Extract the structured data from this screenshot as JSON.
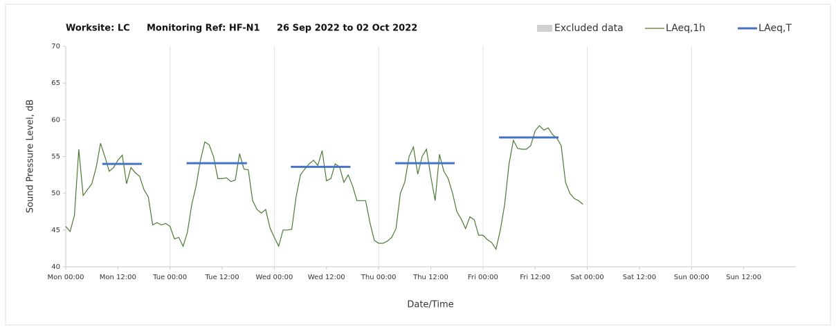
{
  "chart_data": {
    "type": "line",
    "title": [
      "Worksite: LC",
      "Monitoring Ref: HF-N1",
      "26 Sep 2022 to 02 Oct 2022"
    ],
    "x_label": "Date/Time",
    "y_label": "Sound Pressure Level, dB",
    "excluded": {
      "name": "Excluded data",
      "color": "#d0d0d0"
    },
    "xlim": [
      0,
      168
    ],
    "ylim": [
      40,
      70
    ],
    "yticks": [
      40,
      45,
      50,
      55,
      60,
      65,
      70
    ],
    "xticks": [
      {
        "value": 0,
        "label": "Mon 00:00"
      },
      {
        "value": 12,
        "label": "Mon 12:00"
      },
      {
        "value": 24,
        "label": "Tue 00:00"
      },
      {
        "value": 36,
        "label": "Tue 12:00"
      },
      {
        "value": 48,
        "label": "Wed 00:00"
      },
      {
        "value": 60,
        "label": "Wed 12:00"
      },
      {
        "value": 72,
        "label": "Thu 00:00"
      },
      {
        "value": 84,
        "label": "Thu 12:00"
      },
      {
        "value": 96,
        "label": "Fri 00:00"
      },
      {
        "value": 108,
        "label": "Fri 12:00"
      },
      {
        "value": 120,
        "label": "Sat 00:00"
      },
      {
        "value": 132,
        "label": "Sat 12:00"
      },
      {
        "value": 144,
        "label": "Sun 00:00"
      },
      {
        "value": 156,
        "label": "Sun 12:00"
      }
    ],
    "series": [
      {
        "name": "LAeq,1h",
        "color": "#4a7a32",
        "x": [
          0,
          1,
          2,
          3,
          4,
          5,
          6,
          7,
          8,
          9,
          10,
          11,
          12,
          13,
          14,
          15,
          16,
          17,
          18,
          19,
          20,
          21,
          22,
          23,
          24,
          25,
          26,
          27,
          28,
          29,
          30,
          31,
          32,
          33,
          34,
          35,
          36,
          37,
          38,
          39,
          40,
          41,
          42,
          43,
          44,
          45,
          46,
          47,
          48,
          49,
          50,
          51,
          52,
          53,
          54,
          55,
          56,
          57,
          58,
          59,
          60,
          61,
          62,
          63,
          64,
          65,
          66,
          67,
          68,
          69,
          70,
          71,
          72,
          73,
          74,
          75,
          76,
          77,
          78,
          79,
          80,
          81,
          82,
          83,
          84,
          85,
          86,
          87,
          88,
          89,
          90,
          91,
          92,
          93,
          94,
          95,
          96,
          97,
          98,
          99,
          100,
          101,
          102,
          103,
          104,
          105,
          106,
          107,
          108,
          109,
          110,
          111,
          112,
          113,
          114,
          115,
          116,
          117,
          118,
          119
        ],
        "values": [
          45.5,
          44.8,
          47,
          56,
          49.7,
          50.5,
          51.3,
          53.5,
          56.8,
          55,
          53,
          53.5,
          54.5,
          55.2,
          51.3,
          53.5,
          52.8,
          52.3,
          50.5,
          49.5,
          45.7,
          46,
          45.7,
          45.9,
          45.5,
          43.8,
          44,
          42.8,
          44.7,
          48.5,
          51,
          54.5,
          57,
          56.6,
          55,
          52,
          52,
          52.1,
          51.6,
          51.8,
          55.4,
          53.3,
          53.2,
          49,
          47.8,
          47.3,
          47.8,
          45.3,
          44,
          42.8,
          45,
          45,
          45.1,
          49.5,
          52.5,
          53.3,
          54,
          54.5,
          53.8,
          55.8,
          51.7,
          52,
          54,
          53.6,
          51.5,
          52.5,
          51,
          49,
          49,
          49,
          46,
          43.6,
          43.2,
          43.2,
          43.5,
          44,
          45.2,
          50,
          51.5,
          55,
          56.3,
          52.6,
          55,
          56,
          52.3,
          49,
          55.3,
          53,
          52,
          50,
          47.5,
          46.5,
          45.2,
          46.8,
          46.4,
          44.3,
          44.3,
          43.7,
          43.3,
          42.4,
          45,
          48.5,
          54,
          57.2,
          56.1,
          56,
          56,
          56.5,
          58.5,
          59.2,
          58.6,
          58.9,
          58,
          57.5,
          56.5,
          51.5,
          50,
          49.3,
          49,
          48.5
        ]
      },
      {
        "name": "LAeq,T",
        "color": "#4472c4",
        "segments": [
          {
            "start": 8.4,
            "end": 17.5,
            "value": 54.0
          },
          {
            "start": 27.8,
            "end": 41.7,
            "value": 54.1
          },
          {
            "start": 51.8,
            "end": 65.5,
            "value": 53.6
          },
          {
            "start": 75.8,
            "end": 89.5,
            "value": 54.1
          },
          {
            "start": 99.7,
            "end": 113.4,
            "value": 57.6
          }
        ]
      }
    ]
  }
}
